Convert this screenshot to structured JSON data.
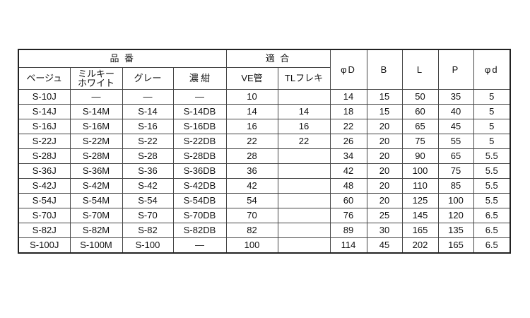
{
  "headers": {
    "group_part_number": "品 番",
    "group_fit": "適 合",
    "columns": [
      "ベージュ",
      "ミルキー\nホワイト",
      "グレー",
      "濃 紺",
      "VE管",
      "TLフレキ",
      "φD",
      "B",
      "L",
      "P",
      "φd"
    ],
    "milky_line1": "ミルキー",
    "milky_line2": "ホワイト"
  },
  "rows": [
    [
      "S-10J",
      "—",
      "—",
      "—",
      "10",
      "",
      "14",
      "15",
      "50",
      "35",
      "5"
    ],
    [
      "S-14J",
      "S-14M",
      "S-14",
      "S-14DB",
      "14",
      "14",
      "18",
      "15",
      "60",
      "40",
      "5"
    ],
    [
      "S-16J",
      "S-16M",
      "S-16",
      "S-16DB",
      "16",
      "16",
      "22",
      "20",
      "65",
      "45",
      "5"
    ],
    [
      "S-22J",
      "S-22M",
      "S-22",
      "S-22DB",
      "22",
      "22",
      "26",
      "20",
      "75",
      "55",
      "5"
    ],
    [
      "S-28J",
      "S-28M",
      "S-28",
      "S-28DB",
      "28",
      "",
      "34",
      "20",
      "90",
      "65",
      "5.5"
    ],
    [
      "S-36J",
      "S-36M",
      "S-36",
      "S-36DB",
      "36",
      "",
      "42",
      "20",
      "100",
      "75",
      "5.5"
    ],
    [
      "S-42J",
      "S-42M",
      "S-42",
      "S-42DB",
      "42",
      "",
      "48",
      "20",
      "110",
      "85",
      "5.5"
    ],
    [
      "S-54J",
      "S-54M",
      "S-54",
      "S-54DB",
      "54",
      "",
      "60",
      "20",
      "125",
      "100",
      "5.5"
    ],
    [
      "S-70J",
      "S-70M",
      "S-70",
      "S-70DB",
      "70",
      "",
      "76",
      "25",
      "145",
      "120",
      "6.5"
    ],
    [
      "S-82J",
      "S-82M",
      "S-82",
      "S-82DB",
      "82",
      "",
      "89",
      "30",
      "165",
      "135",
      "6.5"
    ],
    [
      "S-100J",
      "S-100M",
      "S-100",
      "—",
      "100",
      "",
      "114",
      "45",
      "202",
      "165",
      "6.5"
    ]
  ]
}
